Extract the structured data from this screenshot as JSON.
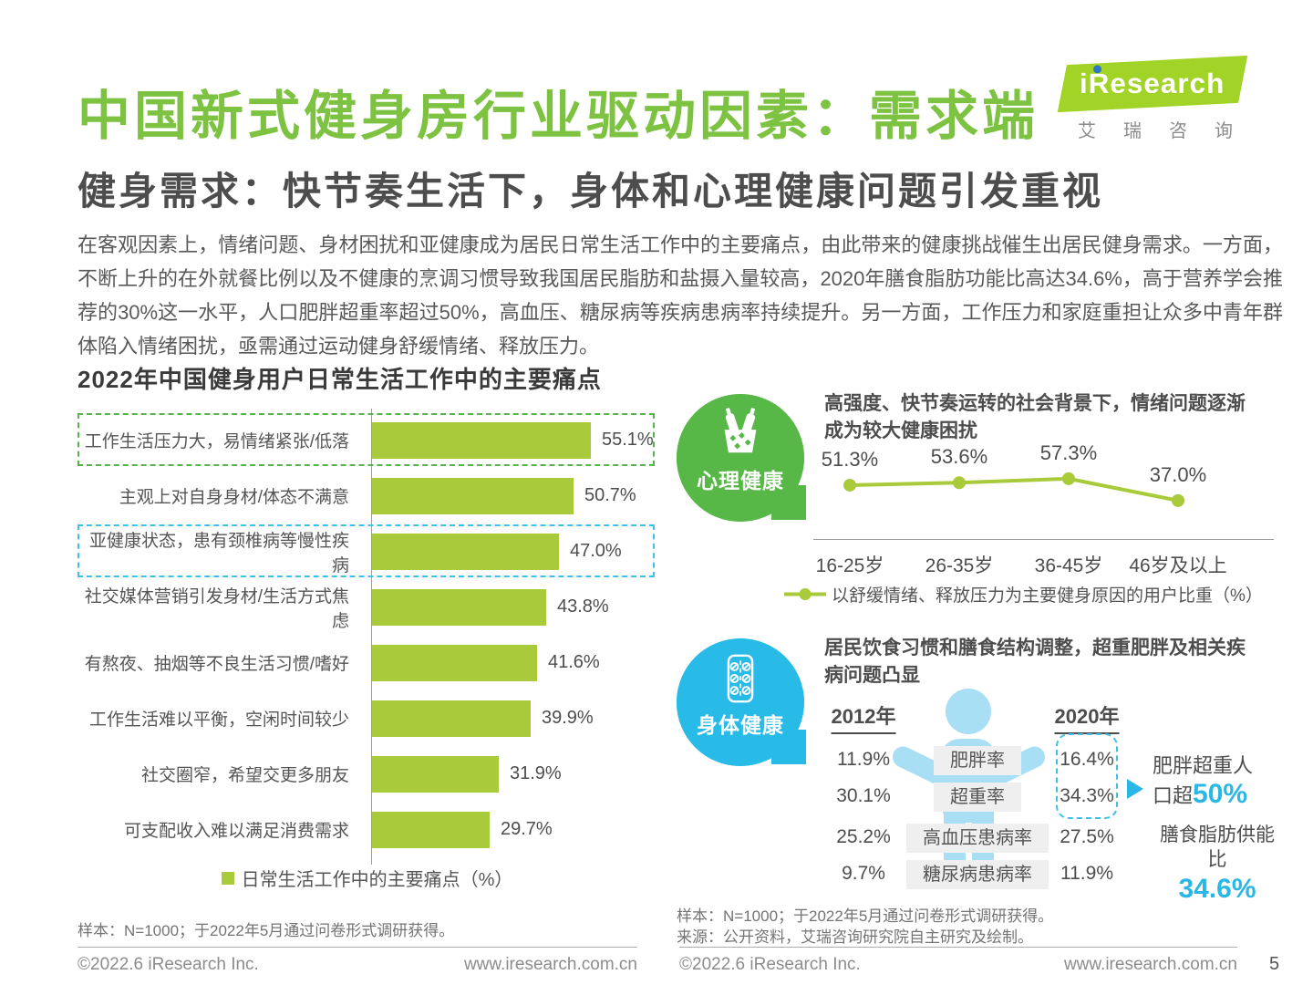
{
  "header": {
    "title": "中国新式健身房行业驱动因素：需求端",
    "subtitle": "健身需求：快节奏生活下，身体和心理健康问题引发重视",
    "paragraph": "在客观因素上，情绪问题、身材困扰和亚健康成为居民日常生活工作中的主要痛点，由此带来的健康挑战催生出居民健身需求。一方面，不断上升的在外就餐比例以及不健康的烹调习惯导致我国居民脂肪和盐摄入量较高，2020年膳食脂肪功能比高达34.6%，高于营养学会推荐的30%这一水平，人口肥胖超重率超过50%，高血压、糖尿病等疾病患病率持续提升。另一方面，工作压力和家庭重担让众多中青年群体陷入情绪困扰，亟需通过运动健身舒缓情绪、释放压力。",
    "logo": {
      "brand": "iResearch",
      "brand_cn": "艾瑞咨询"
    }
  },
  "sections": {
    "psych": {
      "badge_label": "心理健康"
    },
    "body": {
      "badge_label": "身体健康",
      "callout_prefix": "肥胖超重人口超",
      "callout_value": "50%",
      "fat_caption": "膳食脂肪供能比",
      "fat_value": "34.6%"
    }
  },
  "notes": {
    "left_sample": "样本：N=1000；于2022年5月通过问卷形式调研获得。",
    "right_sample": "样本：N=1000；于2022年5月通过问卷形式调研获得。",
    "right_source": "来源：公开资料，艾瑞咨询研究院自主研究及绘制。"
  },
  "footer": {
    "copyright": "©2022.6 iResearch Inc.",
    "website": "www.iresearch.com.cn",
    "page_number": "5"
  },
  "icons": {
    "psych_badge": "bottles-sparkle-icon",
    "body_badge": "pill-blister-icon",
    "logo_dot": "blue-dot-icon",
    "human": "human-figure",
    "callout_arrow": "right-triangle-icon"
  },
  "colors": {
    "title_green": "#7EC242",
    "bar_green": "#A9CA3A",
    "badge_green": "#57B847",
    "badge_cyan": "#29BBE8",
    "accent_cyan": "#29B8E5",
    "light_blue": "#A9DFF5",
    "dashed_green": "#56B44A",
    "dashed_cyan": "#3EC0E8"
  },
  "chart_data": [
    {
      "type": "bar",
      "orientation": "horizontal",
      "title": "2022年中国健身用户日常生活工作中的主要痛点",
      "unit": "%",
      "categories": [
        "工作生活压力大，易情绪紧张/低落",
        "主观上对自身身材/体态不满意",
        "亚健康状态，患有颈椎病等慢性疾病",
        "社交媒体营销引发身材/生活方式焦虑",
        "有熬夜、抽烟等不良生活习惯/嗜好",
        "工作生活难以平衡，空闲时间较少",
        "社交圈窄，希望交更多朋友",
        "可支配收入难以满足消费需求"
      ],
      "values": [
        55.1,
        50.7,
        47.0,
        43.8,
        41.6,
        39.9,
        31.9,
        29.7
      ],
      "legend": "日常生活工作中的主要痛点（%）",
      "highlights": [
        {
          "index": 0,
          "style": "green-dashed"
        },
        {
          "index": 2,
          "style": "cyan-dashed"
        }
      ],
      "xlim": [
        0,
        60
      ],
      "grid": false
    },
    {
      "type": "line",
      "title": "高强度、快节奏运转的社会背景下，情绪问题逐渐成为较大健康困扰",
      "x": [
        "16-25岁",
        "26-35岁",
        "36-45岁",
        "46岁及以上"
      ],
      "values": [
        51.3,
        53.6,
        57.3,
        37.0
      ],
      "unit": "%",
      "series_name": "以舒缓情绪、释放压力为主要健身原因的用户比重（%）",
      "data_labels": true,
      "legend_position": "bottom"
    },
    {
      "type": "table",
      "title": "居民饮食习惯和膳食结构调整，超重肥胖及相关疾病问题凸显",
      "columns": [
        "2012年",
        "2020年"
      ],
      "rows": [
        [
          "11.9%",
          "肥胖率",
          "16.4%"
        ],
        [
          "30.1%",
          "超重率",
          "34.3%"
        ],
        [
          "25.2%",
          "高血压患病率",
          "27.5%"
        ],
        [
          "9.7%",
          "糖尿病患病率",
          "11.9%"
        ]
      ],
      "highlight_box": "2020年肥胖率与超重率",
      "annotations": [
        "肥胖超重人口超50%",
        "膳食脂肪供能比34.6%"
      ]
    }
  ]
}
